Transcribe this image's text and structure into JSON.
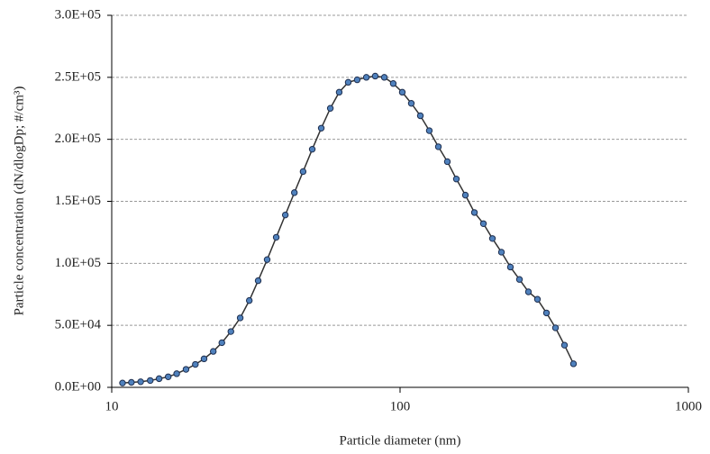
{
  "chart_data": {
    "type": "line",
    "xlabel": "Particle diameter (nm)",
    "ylabel": "Particle concentration (dN/dlogDp; #/cm³)",
    "xscale": "log",
    "xlim": [
      10,
      1000
    ],
    "xticks": [
      10,
      100,
      1000
    ],
    "ylim": [
      0,
      300000
    ],
    "yticks": [
      {
        "value": 0,
        "label": "0.0E+00"
      },
      {
        "value": 50000,
        "label": "5.0E+04"
      },
      {
        "value": 100000,
        "label": "1.0E+05"
      },
      {
        "value": 150000,
        "label": "1.5E+05"
      },
      {
        "value": 200000,
        "label": "2.0E+05"
      },
      {
        "value": 250000,
        "label": "2.5E+05"
      },
      {
        "value": 300000,
        "label": "3.0E+05"
      }
    ],
    "grid": true,
    "x": [
      10.9,
      11.7,
      12.6,
      13.6,
      14.6,
      15.7,
      16.8,
      18.1,
      19.5,
      20.9,
      22.5,
      24.1,
      25.9,
      27.9,
      30.0,
      32.2,
      34.6,
      37.2,
      40.0,
      43.0,
      46.1,
      49.6,
      53.3,
      57.3,
      61.5,
      66.1,
      71.0,
      76.4,
      82.0,
      88.2,
      94.7,
      101.8,
      109.4,
      117.6,
      126.3,
      135.8,
      145.9,
      156.8,
      168.5,
      181.1,
      194.6,
      209.1,
      224.7,
      241.4,
      259.5,
      278.8,
      299.6,
      322.0,
      346.0,
      371.8,
      399.5
    ],
    "series": [
      {
        "color": "#4f81bd",
        "line_color": "#333333",
        "values": [
          3500,
          4000,
          4500,
          5500,
          7000,
          8500,
          11000,
          14500,
          18500,
          23000,
          29000,
          36000,
          45000,
          56000,
          70000,
          86000,
          103000,
          121000,
          139000,
          157000,
          174000,
          192000,
          209000,
          225000,
          238000,
          246000,
          248000,
          250000,
          251000,
          250000,
          245000,
          238000,
          229000,
          219000,
          207000,
          194000,
          182000,
          168000,
          155000,
          141000,
          132000,
          120000,
          109000,
          97000,
          87000,
          77000,
          71000,
          60000,
          48000,
          34000,
          19000
        ]
      }
    ]
  }
}
